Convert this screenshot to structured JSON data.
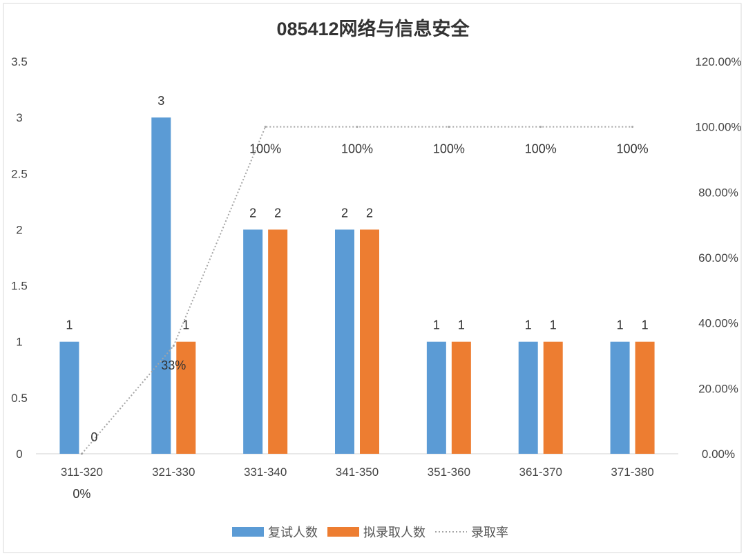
{
  "chart_data": {
    "type": "bar",
    "title": "085412网络与信息安全",
    "categories": [
      "311-320",
      "321-330",
      "331-340",
      "341-350",
      "351-360",
      "361-370",
      "371-380"
    ],
    "series": [
      {
        "name": "复试人数",
        "type": "bar",
        "axis": "left",
        "color": "#5B9BD5",
        "values": [
          1,
          3,
          2,
          2,
          1,
          1,
          1
        ],
        "labels": [
          "1",
          "3",
          "2",
          "2",
          "1",
          "1",
          "1"
        ]
      },
      {
        "name": "拟录取人数",
        "type": "bar",
        "axis": "left",
        "color": "#ED7D31",
        "values": [
          0,
          1,
          2,
          2,
          1,
          1,
          1
        ],
        "labels": [
          "0",
          "1",
          "2",
          "2",
          "1",
          "1",
          "1"
        ]
      },
      {
        "name": "录取率",
        "type": "line",
        "style": "dotted",
        "axis": "right",
        "color": "#A5A5A5",
        "values": [
          0,
          0.33,
          1,
          1,
          1,
          1,
          1
        ],
        "labels": [
          "0%",
          "33%",
          "100%",
          "100%",
          "100%",
          "100%",
          "100%"
        ]
      }
    ],
    "y_left": {
      "ylim": [
        0,
        3.5
      ],
      "ticks": [
        0,
        0.5,
        1,
        1.5,
        2,
        2.5,
        3,
        3.5
      ],
      "tick_labels": [
        "0",
        "0.5",
        "1",
        "1.5",
        "2",
        "2.5",
        "3",
        "3.5"
      ]
    },
    "y_right": {
      "ylim": [
        0,
        1.2
      ],
      "ticks": [
        0,
        0.2,
        0.4,
        0.6,
        0.8,
        1.0,
        1.2
      ],
      "tick_labels": [
        "0.00%",
        "20.00%",
        "40.00%",
        "60.00%",
        "80.00%",
        "100.00%",
        "120.00%"
      ]
    },
    "grid": false,
    "legend_position": "bottom"
  }
}
